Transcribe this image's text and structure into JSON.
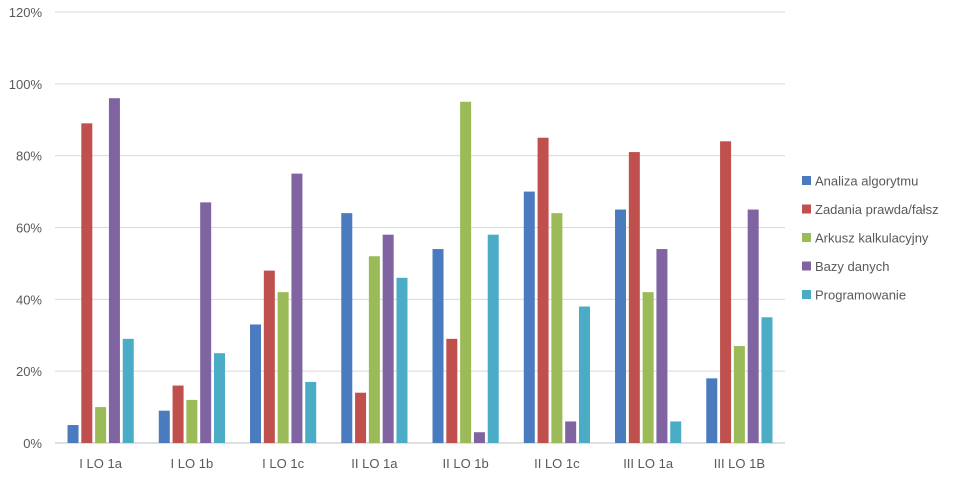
{
  "chart_data": {
    "type": "bar",
    "categories": [
      "I LO 1a",
      "I LO 1b",
      "I LO 1c",
      "II LO 1a",
      "II LO 1b",
      "II LO 1c",
      "III LO 1a",
      "III LO 1B"
    ],
    "series": [
      {
        "name": "Analiza algorytmu",
        "color": "#4a7bbf",
        "values": [
          5,
          9,
          33,
          64,
          54,
          70,
          65,
          18
        ]
      },
      {
        "name": "Zadania prawda/fałsz",
        "color": "#c0504d",
        "values": [
          89,
          16,
          48,
          14,
          29,
          85,
          81,
          84
        ]
      },
      {
        "name": "Arkusz kalkulacyjny",
        "color": "#9bbb59",
        "values": [
          10,
          12,
          42,
          52,
          95,
          64,
          42,
          27
        ]
      },
      {
        "name": "Bazy danych",
        "color": "#8064a2",
        "values": [
          96,
          67,
          75,
          58,
          3,
          6,
          54,
          65
        ]
      },
      {
        "name": "Programowanie",
        "color": "#4bacc6",
        "values": [
          29,
          25,
          17,
          46,
          58,
          38,
          6,
          35
        ]
      }
    ],
    "ylim": [
      0,
      120
    ],
    "yticks": [
      "0%",
      "20%",
      "40%",
      "60%",
      "80%",
      "100%",
      "120%"
    ],
    "grid": true,
    "legend": "right"
  }
}
